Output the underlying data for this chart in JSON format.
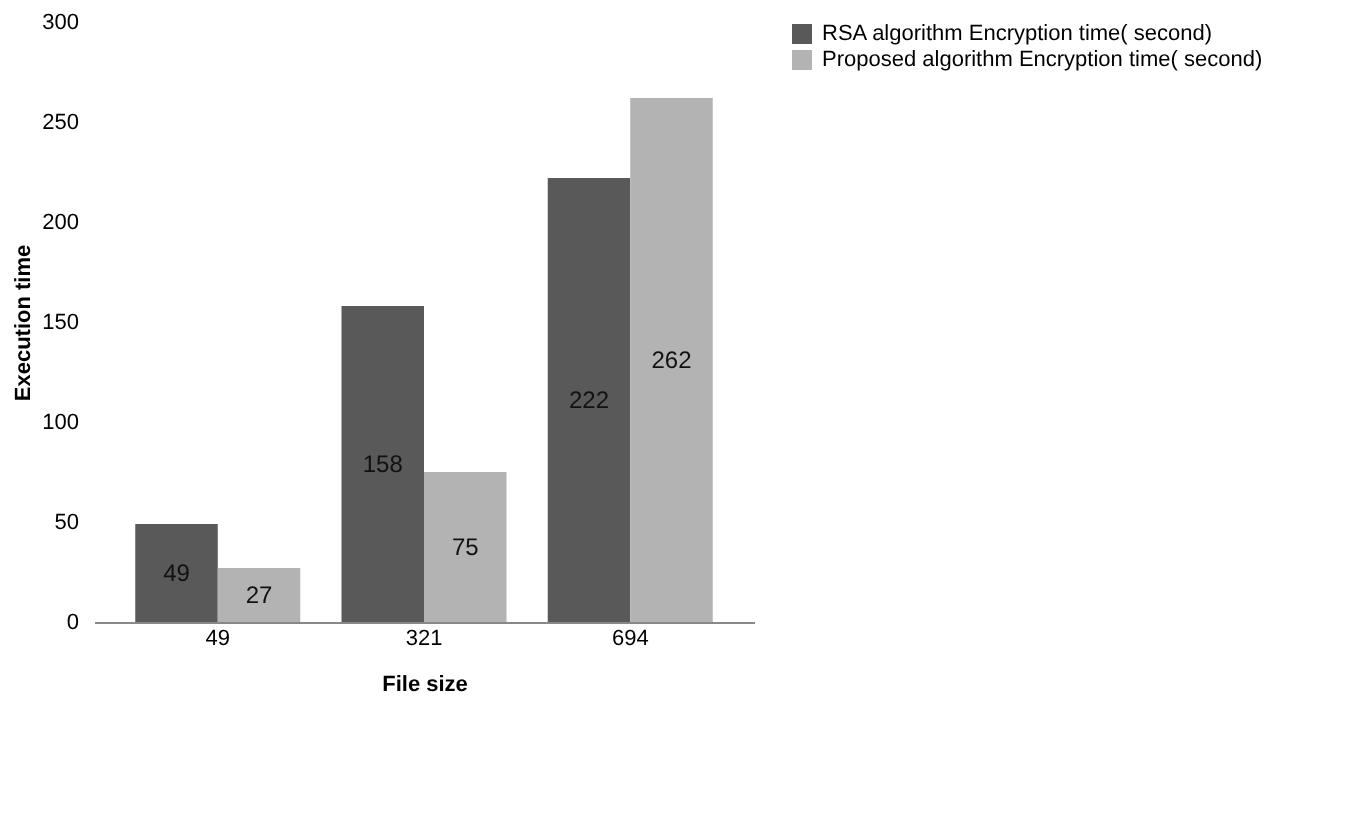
{
  "chart_data": {
    "type": "bar",
    "xlabel": "File size",
    "ylabel": "Execution time",
    "categories": [
      "49",
      "321",
      "694"
    ],
    "series": [
      {
        "name": "RSA algorithm  Encryption time( second)",
        "color": "#595959",
        "values": [
          49,
          158,
          222
        ]
      },
      {
        "name": "Proposed algorithm Encryption time( second)",
        "color": "#b3b3b3",
        "values": [
          27,
          75,
          262
        ]
      }
    ],
    "ylim": [
      0,
      300
    ],
    "yticks": [
      0,
      50,
      100,
      150,
      200,
      250,
      300
    ],
    "grid": false,
    "legend": "right",
    "data_labels": true
  }
}
